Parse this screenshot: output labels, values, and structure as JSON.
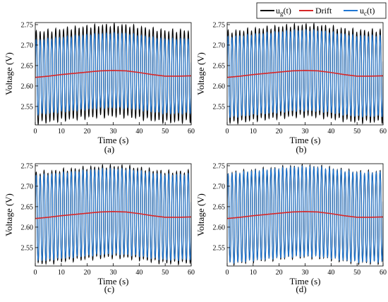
{
  "legend": {
    "items": [
      {
        "main": "u",
        "sub": "g",
        "tail": "(t)",
        "color": "#000000"
      },
      {
        "main": "Drift",
        "sub": "",
        "tail": "",
        "color": "#d62728"
      },
      {
        "main": "u",
        "sub": "c",
        "tail": "(t)",
        "color": "#1f77d4"
      }
    ]
  },
  "chart_data": [
    {
      "type": "line",
      "caption": "(a)",
      "xlabel": "Time (s)",
      "ylabel": "Voltage (V)",
      "xlim": [
        0,
        60
      ],
      "ylim": [
        2.505,
        2.755
      ],
      "xticks": [
        0,
        10,
        20,
        30,
        40,
        50,
        60
      ],
      "yticks": [
        "2.55",
        "2.60",
        "2.65",
        "2.70",
        "2.75"
      ],
      "oscillation": {
        "cycles": 40,
        "ug_amplitude": 0.111,
        "uc_amplitude": 0.091
      },
      "series": [
        {
          "name": "ug(t)",
          "color": "#000000"
        },
        {
          "name": "Drift",
          "color": "#d62728",
          "x": [
            0,
            5,
            10,
            15,
            20,
            25,
            30,
            35,
            40,
            45,
            50,
            55,
            60
          ],
          "y": [
            2.621,
            2.624,
            2.628,
            2.631,
            2.634,
            2.637,
            2.638,
            2.637,
            2.633,
            2.628,
            2.624,
            2.624,
            2.625
          ]
        },
        {
          "name": "uc(t)",
          "color": "#1f77d4"
        }
      ]
    },
    {
      "type": "line",
      "caption": "(b)",
      "xlabel": "Time (s)",
      "ylabel": "Voltage (V)",
      "xlim": [
        0,
        60
      ],
      "ylim": [
        2.505,
        2.755
      ],
      "xticks": [
        0,
        10,
        20,
        30,
        40,
        50,
        60
      ],
      "yticks": [
        "2.55",
        "2.60",
        "2.65",
        "2.70",
        "2.75"
      ],
      "oscillation": {
        "cycles": 40,
        "ug_amplitude": 0.111,
        "uc_amplitude": 0.098
      },
      "series": [
        {
          "name": "ug(t)",
          "color": "#000000"
        },
        {
          "name": "Drift",
          "color": "#d62728",
          "x": [
            0,
            5,
            10,
            15,
            20,
            25,
            30,
            35,
            40,
            45,
            50,
            55,
            60
          ],
          "y": [
            2.621,
            2.624,
            2.628,
            2.631,
            2.634,
            2.637,
            2.638,
            2.637,
            2.633,
            2.628,
            2.624,
            2.624,
            2.625
          ]
        },
        {
          "name": "uc(t)",
          "color": "#1f77d4"
        }
      ]
    },
    {
      "type": "line",
      "caption": "(c)",
      "xlabel": "Time (s)",
      "ylabel": "Voltage (V)",
      "xlim": [
        0,
        60
      ],
      "ylim": [
        2.505,
        2.755
      ],
      "xticks": [
        0,
        10,
        20,
        30,
        40,
        50,
        60
      ],
      "yticks": [
        "2.55",
        "2.60",
        "2.65",
        "2.70",
        "2.75"
      ],
      "oscillation": {
        "cycles": 40,
        "ug_amplitude": 0.111,
        "uc_amplitude": 0.104
      },
      "series": [
        {
          "name": "ug(t)",
          "color": "#000000"
        },
        {
          "name": "Drift",
          "color": "#d62728",
          "x": [
            0,
            5,
            10,
            15,
            20,
            25,
            30,
            35,
            40,
            45,
            50,
            55,
            60
          ],
          "y": [
            2.621,
            2.624,
            2.628,
            2.631,
            2.634,
            2.637,
            2.638,
            2.637,
            2.633,
            2.628,
            2.624,
            2.624,
            2.625
          ]
        },
        {
          "name": "uc(t)",
          "color": "#1f77d4"
        }
      ]
    },
    {
      "type": "line",
      "caption": "(d)",
      "xlabel": "Time (s)",
      "ylabel": "Voltage (V)",
      "xlim": [
        0,
        60
      ],
      "ylim": [
        2.505,
        2.755
      ],
      "xticks": [
        0,
        10,
        20,
        30,
        40,
        50,
        60
      ],
      "yticks": [
        "2.55",
        "2.60",
        "2.65",
        "2.70",
        "2.75"
      ],
      "oscillation": {
        "cycles": 40,
        "ug_amplitude": 0.111,
        "uc_amplitude": 0.109
      },
      "series": [
        {
          "name": "ug(t)",
          "color": "#000000"
        },
        {
          "name": "Drift",
          "color": "#d62728",
          "x": [
            0,
            5,
            10,
            15,
            20,
            25,
            30,
            35,
            40,
            45,
            50,
            55,
            60
          ],
          "y": [
            2.621,
            2.624,
            2.628,
            2.631,
            2.634,
            2.637,
            2.638,
            2.637,
            2.633,
            2.628,
            2.624,
            2.624,
            2.625
          ]
        },
        {
          "name": "uc(t)",
          "color": "#1f77d4"
        }
      ]
    }
  ]
}
